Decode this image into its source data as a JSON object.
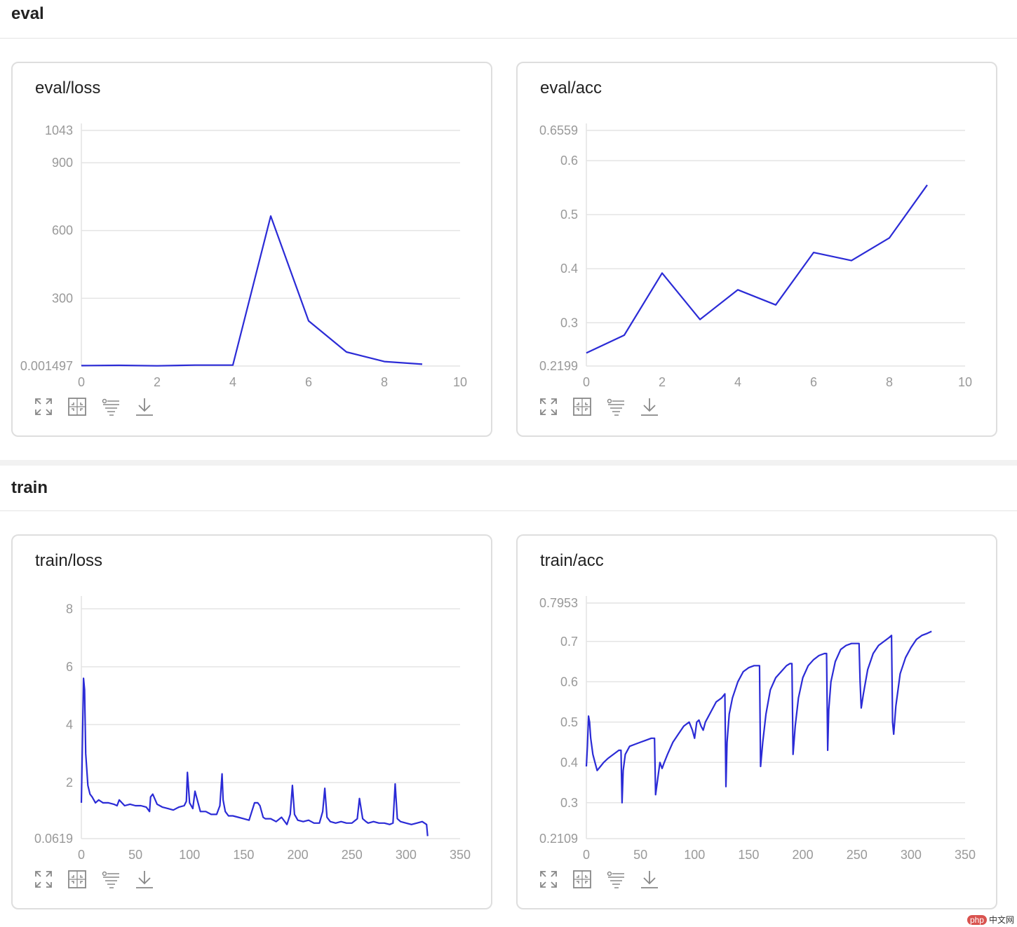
{
  "sections": [
    {
      "title": "eval"
    },
    {
      "title": "train"
    }
  ],
  "colors": {
    "line": "#2b2bd6",
    "grid": "#e4e4e4",
    "tick": "#999999"
  },
  "toolbar_icons": [
    "expand-icon",
    "fit-icon",
    "filter-icon",
    "download-icon"
  ],
  "watermark": {
    "logo": "php",
    "text": "中文网"
  },
  "chart_data": [
    {
      "type": "line",
      "title": "eval/loss",
      "xlabel": "",
      "ylabel": "",
      "xlim": [
        0,
        10
      ],
      "ylim": [
        0.001497,
        1043
      ],
      "xticks": [
        0,
        2,
        4,
        6,
        8,
        10
      ],
      "xtick_labels": [
        "0",
        "2",
        "4",
        "6",
        "8",
        "10"
      ],
      "yticks": [
        0.001497,
        300,
        600,
        900,
        1043
      ],
      "ytick_labels": [
        "0.001497",
        "300",
        "600",
        "900",
        "1043"
      ],
      "grid": true,
      "series": [
        {
          "x": [
            0,
            1,
            2,
            3,
            4,
            5,
            6,
            7,
            8,
            9
          ],
          "values": [
            2,
            3,
            1,
            4,
            4,
            664,
            200,
            62,
            20,
            8
          ]
        }
      ]
    },
    {
      "type": "line",
      "title": "eval/acc",
      "xlabel": "",
      "ylabel": "",
      "xlim": [
        0,
        10
      ],
      "ylim": [
        0.2199,
        0.6559
      ],
      "xticks": [
        0,
        2,
        4,
        6,
        8,
        10
      ],
      "xtick_labels": [
        "0",
        "2",
        "4",
        "6",
        "8",
        "10"
      ],
      "yticks": [
        0.2199,
        0.3,
        0.4,
        0.5,
        0.6,
        0.6559
      ],
      "ytick_labels": [
        "0.2199",
        "0.3",
        "0.4",
        "0.5",
        "0.6",
        "0.6559"
      ],
      "grid": true,
      "series": [
        {
          "x": [
            0,
            1,
            2,
            3,
            4,
            5,
            6,
            7,
            8,
            9
          ],
          "values": [
            0.244,
            0.277,
            0.392,
            0.306,
            0.361,
            0.333,
            0.43,
            0.415,
            0.457,
            0.555
          ]
        }
      ]
    },
    {
      "type": "line",
      "title": "train/loss",
      "xlabel": "",
      "ylabel": "",
      "xlim": [
        0,
        350
      ],
      "ylim": [
        0.0619,
        8.2
      ],
      "xticks": [
        0,
        50,
        100,
        150,
        200,
        250,
        300,
        350
      ],
      "xtick_labels": [
        "0",
        "50",
        "100",
        "150",
        "200",
        "250",
        "300",
        "350"
      ],
      "yticks": [
        0.0619,
        2,
        4,
        6,
        8
      ],
      "ytick_labels": [
        "0.0619",
        "2",
        "4",
        "6",
        "8"
      ],
      "grid": true,
      "series": [
        {
          "x": [
            0,
            2,
            3,
            4,
            6,
            8,
            10,
            13,
            16,
            20,
            25,
            30,
            33,
            35,
            40,
            45,
            50,
            55,
            60,
            63,
            64,
            66,
            70,
            75,
            80,
            85,
            90,
            95,
            97,
            98,
            100,
            103,
            105,
            110,
            115,
            120,
            125,
            128,
            130,
            131,
            133,
            136,
            140,
            145,
            150,
            155,
            160,
            163,
            165,
            168,
            170,
            175,
            180,
            185,
            190,
            193,
            195,
            197,
            200,
            205,
            210,
            215,
            220,
            223,
            225,
            227,
            230,
            235,
            240,
            245,
            250,
            255,
            257,
            260,
            263,
            265,
            270,
            275,
            280,
            285,
            288,
            290,
            292,
            295,
            300,
            305,
            310,
            315,
            319,
            320
          ],
          "values": [
            1.3,
            5.6,
            5.2,
            3.0,
            1.9,
            1.6,
            1.5,
            1.3,
            1.4,
            1.3,
            1.3,
            1.25,
            1.2,
            1.4,
            1.2,
            1.25,
            1.2,
            1.2,
            1.15,
            1.0,
            1.5,
            1.6,
            1.25,
            1.15,
            1.1,
            1.05,
            1.15,
            1.2,
            1.35,
            2.35,
            1.3,
            1.1,
            1.7,
            1.0,
            1.0,
            0.9,
            0.9,
            1.2,
            2.3,
            1.4,
            1.0,
            0.85,
            0.85,
            0.8,
            0.75,
            0.7,
            1.3,
            1.3,
            1.2,
            0.8,
            0.75,
            0.75,
            0.65,
            0.8,
            0.55,
            0.9,
            1.9,
            0.9,
            0.7,
            0.65,
            0.7,
            0.6,
            0.6,
            1.0,
            1.8,
            0.8,
            0.65,
            0.6,
            0.65,
            0.6,
            0.6,
            0.75,
            1.45,
            0.75,
            0.65,
            0.6,
            0.65,
            0.6,
            0.6,
            0.55,
            0.6,
            1.95,
            0.75,
            0.65,
            0.6,
            0.55,
            0.6,
            0.65,
            0.55,
            0.15
          ]
        }
      ]
    },
    {
      "type": "line",
      "title": "train/acc",
      "xlabel": "",
      "ylabel": "",
      "xlim": [
        0,
        350
      ],
      "ylim": [
        0.2109,
        0.7953
      ],
      "xticks": [
        0,
        50,
        100,
        150,
        200,
        250,
        300,
        350
      ],
      "xtick_labels": [
        "0",
        "50",
        "100",
        "150",
        "200",
        "250",
        "300",
        "350"
      ],
      "yticks": [
        0.2109,
        0.3,
        0.4,
        0.5,
        0.6,
        0.7,
        0.7953
      ],
      "ytick_labels": [
        "0.2109",
        "0.3",
        "0.4",
        "0.5",
        "0.6",
        "0.7",
        "0.7953"
      ],
      "grid": true,
      "series": [
        {
          "x": [
            0,
            1,
            2,
            3,
            4,
            6,
            8,
            10,
            13,
            16,
            20,
            25,
            30,
            32,
            33,
            34,
            36,
            40,
            45,
            50,
            55,
            60,
            63,
            64,
            66,
            68,
            70,
            72,
            75,
            80,
            85,
            90,
            95,
            98,
            100,
            102,
            104,
            106,
            108,
            110,
            115,
            120,
            125,
            128,
            129,
            130,
            132,
            135,
            140,
            145,
            150,
            155,
            158,
            160,
            161,
            163,
            166,
            170,
            175,
            180,
            185,
            188,
            190,
            191,
            193,
            196,
            200,
            205,
            210,
            215,
            220,
            222,
            223,
            224,
            226,
            230,
            235,
            240,
            245,
            250,
            252,
            253,
            254,
            256,
            260,
            265,
            270,
            275,
            280,
            282,
            283,
            284,
            286,
            290,
            295,
            300,
            305,
            310,
            315,
            319
          ],
          "values": [
            0.39,
            0.44,
            0.515,
            0.5,
            0.46,
            0.42,
            0.4,
            0.38,
            0.39,
            0.4,
            0.41,
            0.42,
            0.43,
            0.43,
            0.3,
            0.38,
            0.42,
            0.44,
            0.445,
            0.45,
            0.455,
            0.46,
            0.46,
            0.32,
            0.36,
            0.4,
            0.385,
            0.4,
            0.42,
            0.45,
            0.47,
            0.49,
            0.5,
            0.48,
            0.46,
            0.5,
            0.505,
            0.49,
            0.48,
            0.5,
            0.525,
            0.55,
            0.56,
            0.57,
            0.34,
            0.45,
            0.52,
            0.56,
            0.6,
            0.625,
            0.635,
            0.64,
            0.64,
            0.64,
            0.39,
            0.45,
            0.52,
            0.58,
            0.61,
            0.625,
            0.64,
            0.645,
            0.645,
            0.42,
            0.49,
            0.56,
            0.61,
            0.64,
            0.655,
            0.665,
            0.67,
            0.67,
            0.43,
            0.53,
            0.6,
            0.65,
            0.68,
            0.69,
            0.695,
            0.695,
            0.695,
            0.6,
            0.535,
            0.57,
            0.63,
            0.67,
            0.69,
            0.7,
            0.71,
            0.715,
            0.5,
            0.47,
            0.54,
            0.62,
            0.66,
            0.685,
            0.705,
            0.715,
            0.72,
            0.725
          ]
        }
      ]
    }
  ]
}
